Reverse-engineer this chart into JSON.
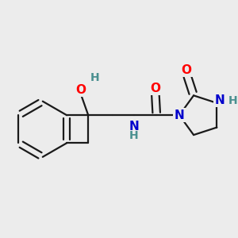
{
  "background_color": "#ececec",
  "bond_color": "#1a1a1a",
  "bond_width": 1.6,
  "atom_colors": {
    "O": "#ff0000",
    "N": "#0000cc",
    "H": "#4a9090",
    "C": "#1a1a1a"
  },
  "font_size_atom": 11,
  "font_size_H": 10
}
